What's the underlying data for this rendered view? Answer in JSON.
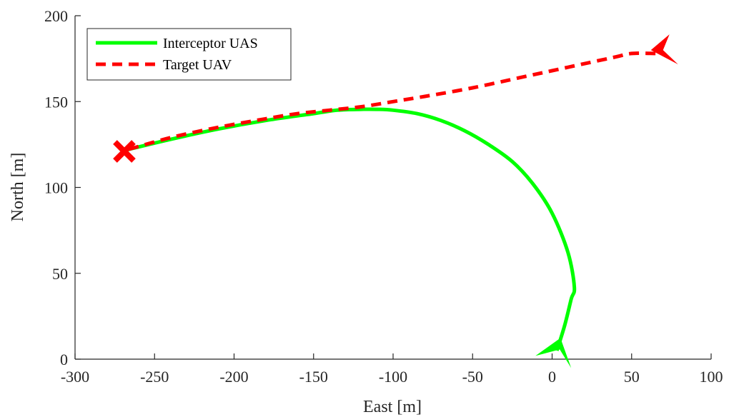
{
  "chart_data": {
    "type": "line",
    "title": "",
    "xlabel": "East [m]",
    "ylabel": "North [m]",
    "xlim": [
      -300,
      100
    ],
    "ylim": [
      0,
      200
    ],
    "xticks": [
      -300,
      -250,
      -200,
      -150,
      -100,
      -50,
      0,
      50,
      100
    ],
    "yticks": [
      0,
      50,
      100,
      150,
      200
    ],
    "grid": false,
    "legend": "top-left",
    "series": [
      {
        "name": "Interceptor UAS",
        "color": "#00ff00",
        "style": "solid",
        "x": [
          3,
          8,
          12,
          14,
          10,
          0,
          -12,
          -25,
          -40,
          -55,
          -70,
          -85,
          -100,
          -110,
          -120,
          -135,
          -150,
          -180,
          -210,
          -240,
          -267
        ],
        "y": [
          5,
          20,
          35,
          42,
          62,
          85,
          102,
          115,
          125,
          133,
          139,
          143,
          145,
          145.5,
          145.5,
          145,
          143,
          139,
          134,
          128,
          122
        ]
      },
      {
        "name": "Target UAV",
        "color": "#ff0000",
        "style": "dashed",
        "x": [
          65,
          50,
          40,
          20,
          0,
          -20,
          -50,
          -80,
          -100,
          -120,
          -140,
          -160,
          -180,
          -210,
          -240,
          -267
        ],
        "y": [
          178,
          178,
          176,
          172,
          168,
          164,
          158,
          153,
          150,
          147,
          145,
          143,
          140,
          135,
          129,
          122
        ]
      }
    ],
    "markers": [
      {
        "name": "interceptor-start-arrow",
        "x": 3,
        "y": 4,
        "color": "#00ff00",
        "shape": "arrowhead"
      },
      {
        "name": "target-start-arrow",
        "x": 72,
        "y": 180,
        "color": "#ff0000",
        "shape": "arrowhead"
      },
      {
        "name": "intercept-point",
        "x": -269,
        "y": 121,
        "color": "#ff0000",
        "shape": "x"
      }
    ]
  }
}
